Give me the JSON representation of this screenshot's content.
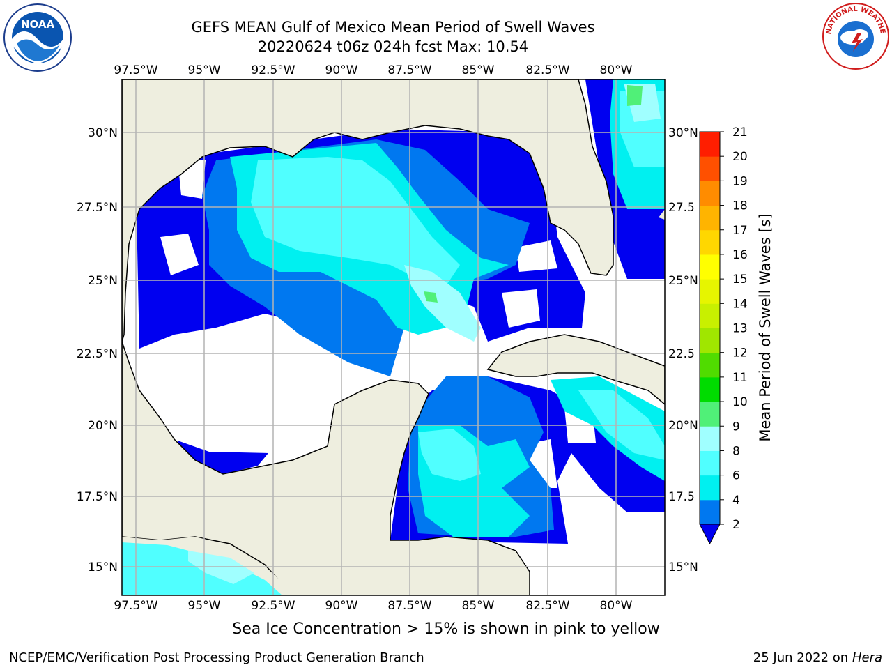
{
  "header": {
    "title_line1": "GEFS MEAN Gulf of Mexico Mean Period of Swell Waves",
    "title_line2": "20220624 t06z 024h fcst   Max: 10.54"
  },
  "logos": {
    "noaa": {
      "text": "NOAA",
      "icon": "noaa-seal-icon"
    },
    "nws": {
      "text": "NATIONAL WEATHER SERVICE",
      "icon": "nws-seal-icon"
    }
  },
  "map": {
    "lon_labels": [
      "97.5°W",
      "95°W",
      "92.5°W",
      "90°W",
      "87.5°W",
      "85°W",
      "82.5°W",
      "80°W"
    ],
    "lat_labels_left": [
      "30°N",
      "27.5°N",
      "25°N",
      "22.5°N",
      "20°N",
      "17.5°N",
      "15°N"
    ],
    "lat_labels_right": [
      "30°N",
      "27.5",
      "25°N",
      "22.5",
      "20°N",
      "17.5",
      "15°N"
    ],
    "colors": {
      "land": "#eeeedf",
      "ocean_low": "#ffffff",
      "level_0_2": "#0000f0",
      "level_2_4": "#0078f0",
      "level_4_6": "#00f0f0",
      "level_6_8": "#50ffff",
      "level_8_9": "#a0ffff",
      "level_9_10": "#50f078",
      "grid": "#b4b4b4"
    }
  },
  "colorbar": {
    "label": "Mean Period of Swell Waves [s]",
    "ticks": [
      "2",
      "4",
      "6",
      "8",
      "9",
      "10",
      "11",
      "12",
      "13",
      "14",
      "15",
      "16",
      "17",
      "18",
      "19",
      "20",
      "21"
    ],
    "colors": [
      "#0078f0",
      "#00f0f0",
      "#50ffff",
      "#a0ffff",
      "#50f078",
      "#00dc00",
      "#50dc00",
      "#a0e600",
      "#c8f000",
      "#e6f500",
      "#ffff00",
      "#ffd700",
      "#ffb400",
      "#ff8c00",
      "#ff5000",
      "#ff1e00"
    ],
    "extend_color": "#0000f0"
  },
  "footer": {
    "caption": "Sea Ice Concentration > 15% is shown in pink to yellow",
    "credit_left": "NCEP/EMC/Verification Post Processing Product Generation Branch",
    "credit_date": "25 Jun 2022 on",
    "credit_host": "Hera"
  }
}
